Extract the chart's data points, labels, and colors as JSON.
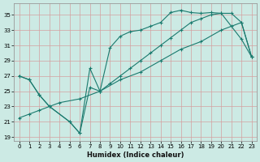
{
  "xlabel": "Humidex (Indice chaleur)",
  "bg_color": "#cceae4",
  "line_color": "#1a7a6e",
  "grid_color": "#d4a0a0",
  "xlim": [
    -0.5,
    23.5
  ],
  "ylim": [
    18.5,
    36.5
  ],
  "xticks": [
    0,
    1,
    2,
    3,
    4,
    5,
    6,
    7,
    8,
    9,
    10,
    11,
    12,
    13,
    14,
    15,
    16,
    17,
    18,
    19,
    20,
    21,
    22,
    23
  ],
  "yticks": [
    19,
    21,
    23,
    25,
    27,
    29,
    31,
    33,
    35
  ],
  "line1_x": [
    0,
    1,
    2,
    3,
    5,
    6,
    7,
    8,
    9,
    10,
    11,
    12,
    13,
    14,
    15,
    16,
    17,
    18,
    19,
    20,
    21,
    22,
    23
  ],
  "line1_y": [
    27.0,
    26.5,
    24.5,
    23.0,
    21.0,
    19.5,
    28.0,
    25.0,
    30.7,
    32.2,
    32.8,
    33.0,
    33.5,
    34.0,
    35.3,
    35.6,
    35.3,
    35.2,
    35.3,
    35.2,
    33.5,
    31.8,
    29.5
  ],
  "line2_x": [
    0,
    1,
    2,
    3,
    5,
    6,
    7,
    8,
    9,
    10,
    11,
    12,
    13,
    14,
    15,
    16,
    17,
    18,
    19,
    20,
    21,
    22,
    23
  ],
  "line2_y": [
    27.0,
    26.5,
    24.5,
    23.0,
    21.0,
    19.5,
    25.5,
    25.0,
    26.0,
    27.0,
    28.0,
    29.0,
    30.0,
    31.0,
    32.0,
    33.0,
    34.0,
    34.5,
    35.0,
    35.2,
    35.2,
    34.0,
    29.5
  ],
  "line3_x": [
    0,
    1,
    2,
    4,
    6,
    8,
    10,
    12,
    14,
    16,
    18,
    20,
    22,
    23
  ],
  "line3_y": [
    21.5,
    22.0,
    22.5,
    23.5,
    24.0,
    25.0,
    26.5,
    27.5,
    29.0,
    30.5,
    31.5,
    33.0,
    34.0,
    29.5
  ]
}
